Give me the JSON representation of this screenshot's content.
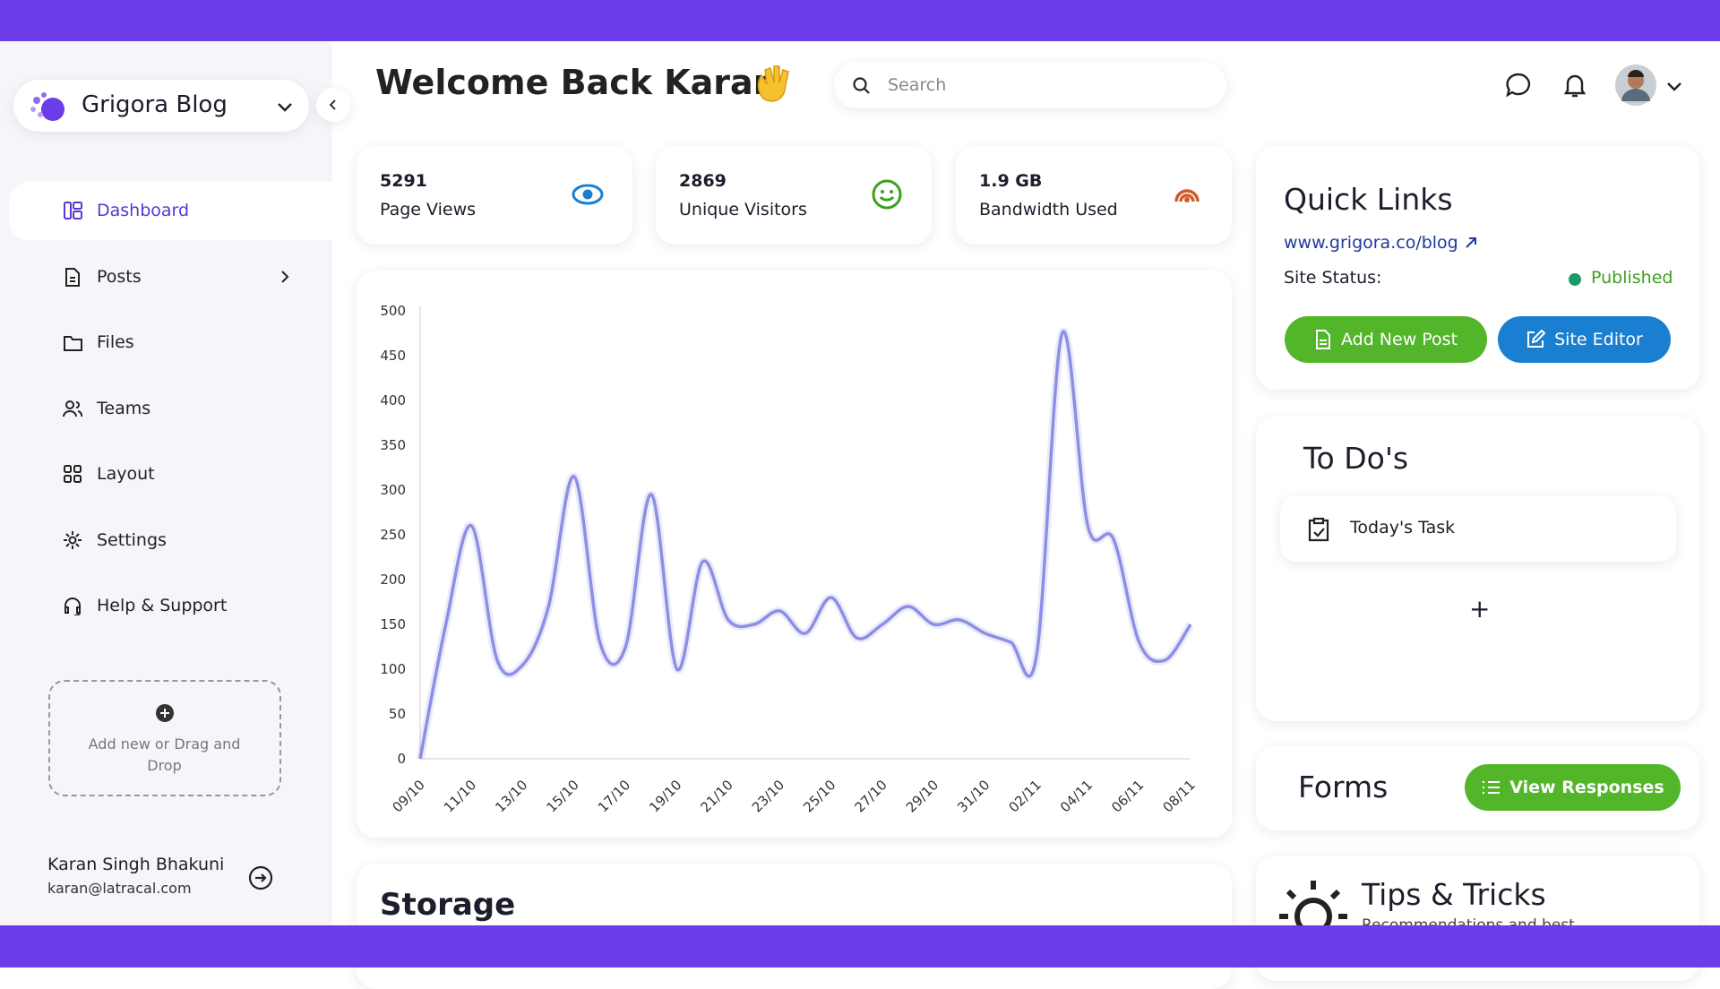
{
  "sidebar": {
    "brand": "Grigora Blog",
    "nav": [
      "Dashboard",
      "Posts",
      "Files",
      "Teams",
      "Layout",
      "Settings",
      "Help & Support"
    ],
    "dropzone": "Add new or Drag and Drop",
    "user_name": "Karan Singh Bhakuni",
    "user_email": "karan@latracal.com"
  },
  "header": {
    "title": "Welcome Back Karan",
    "search_placeholder": "Search"
  },
  "stats": [
    {
      "value": "5291",
      "label": "Page Views"
    },
    {
      "value": "2869",
      "label": "Unique Visitors"
    },
    {
      "value": "1.9 GB",
      "label": "Bandwidth Used"
    }
  ],
  "chart_data": {
    "type": "line",
    "categories": [
      "09/10",
      null,
      "11/10",
      null,
      "13/10",
      null,
      "15/10",
      null,
      "17/10",
      null,
      "19/10",
      null,
      "21/10",
      null,
      "23/10",
      null,
      "25/10",
      null,
      "27/10",
      null,
      "29/10",
      null,
      "31/10",
      null,
      "02/11",
      null,
      "04/11",
      null,
      "06/11",
      null,
      "08/11"
    ],
    "values": [
      0,
      150,
      260,
      110,
      105,
      170,
      315,
      130,
      125,
      295,
      100,
      220,
      155,
      150,
      165,
      140,
      180,
      135,
      150,
      170,
      150,
      155,
      140,
      130,
      115,
      475,
      260,
      245,
      130,
      110,
      150
    ],
    "color": "#8c8fe4",
    "ylim": [
      0,
      500
    ],
    "yticks": [
      0,
      50,
      100,
      150,
      200,
      250,
      300,
      350,
      400,
      450,
      500
    ]
  },
  "storage": {
    "title": "Storage"
  },
  "quick_links": {
    "title": "Quick Links",
    "url": "www.grigora.co/blog",
    "status_label": "Site Status:",
    "status": "Published",
    "buttons": [
      "Add New Post",
      "Site Editor"
    ]
  },
  "todos": {
    "title": "To Do's",
    "items": [
      "Today's Task"
    ],
    "add": "+"
  },
  "forms": {
    "title": "Forms",
    "button": "View Responses"
  },
  "tips": {
    "title": "Tips & Tricks",
    "subtitle": "Recommendations and best"
  }
}
